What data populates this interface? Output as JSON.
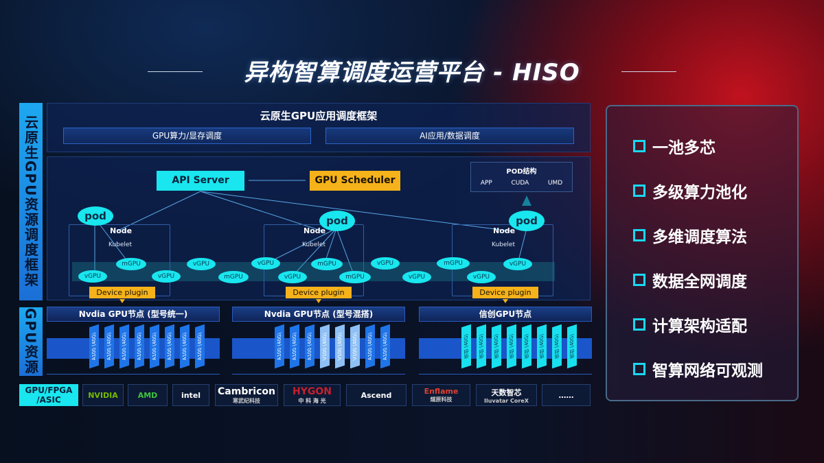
{
  "title": "异构智算调度运营平台 - HISO",
  "side_labels": {
    "framework": "云原生GPU资源调度框架",
    "resources": "GPU资源",
    "chips": "GPU/FPGA /ASIC"
  },
  "app_framework": {
    "title": "云原生GPU应用调度框架",
    "boxes": [
      "GPU算力/显存调度",
      "AI应用/数据调度"
    ]
  },
  "scheduler": {
    "api_server": "API Server",
    "gpu_scheduler": "GPU Scheduler",
    "pod_structure": {
      "title": "POD结构",
      "items": [
        "APP",
        "CUDA",
        "UMD"
      ]
    },
    "node_label": "Node",
    "kubelet_label": "Kubelet",
    "pod_label": "pod",
    "device_plugin": "Device plugin",
    "vgpu": "vGPU",
    "mgpu": "mGPU"
  },
  "gpu_nodes": [
    {
      "title": "Nvdia GPU节点 (型号统一)",
      "cards": [
        "A100 (40G)",
        "A100 (40G)",
        "A100 (40G)",
        "A100 (40G)",
        "A100 (40G)",
        "A100 (40G)",
        "A100 (40G)",
        "A100 (40G)"
      ]
    },
    {
      "title": "Nvdia GPU节点 (型号混搭)",
      "cards": [
        "A100 (40G)",
        "A100 (40G)",
        "A100 (40G)",
        "V100 (40G)",
        "V100 (40G)",
        "V100 (40G)",
        "A100 (40G)",
        "A100 (40G)"
      ]
    },
    {
      "title": "信创GPU节点",
      "cards": [
        "信创 (40G)",
        "信创 (40G)",
        "信创 (40G)",
        "信创 (40G)",
        "信创 (40G)",
        "信创 (40G)",
        "信创 (40G)",
        "信创 (40G)"
      ]
    }
  ],
  "vendors": [
    {
      "name": "NVIDIA",
      "sub": "",
      "color": "#76b900"
    },
    {
      "name": "AMD",
      "sub": "",
      "color": "#3ec43e"
    },
    {
      "name": "intel",
      "sub": "",
      "color": "#ffffff"
    },
    {
      "name": "Cambricon",
      "sub": "寒武纪科技",
      "color": "#ffffff"
    },
    {
      "name": "HYGON",
      "sub": "中 科 海 光",
      "color": "#c8202c"
    },
    {
      "name": "Ascend",
      "sub": "",
      "color": "#ffffff"
    },
    {
      "name": "Enflame",
      "sub": "燧原科技",
      "color": "#e04030"
    },
    {
      "name": "天数智芯",
      "sub": "Iluvatar CoreX",
      "color": "#ffffff"
    },
    {
      "name": "……",
      "sub": "",
      "color": "#ffffff"
    }
  ],
  "features": [
    "一池多芯",
    "多级算力池化",
    "多维调度算法",
    "数据全网调度",
    "计算架构适配",
    "智算网络可观测"
  ],
  "colors": {
    "cyan": "#19e6ee",
    "yellow": "#f5b21a",
    "blue": "#1a56c9"
  }
}
